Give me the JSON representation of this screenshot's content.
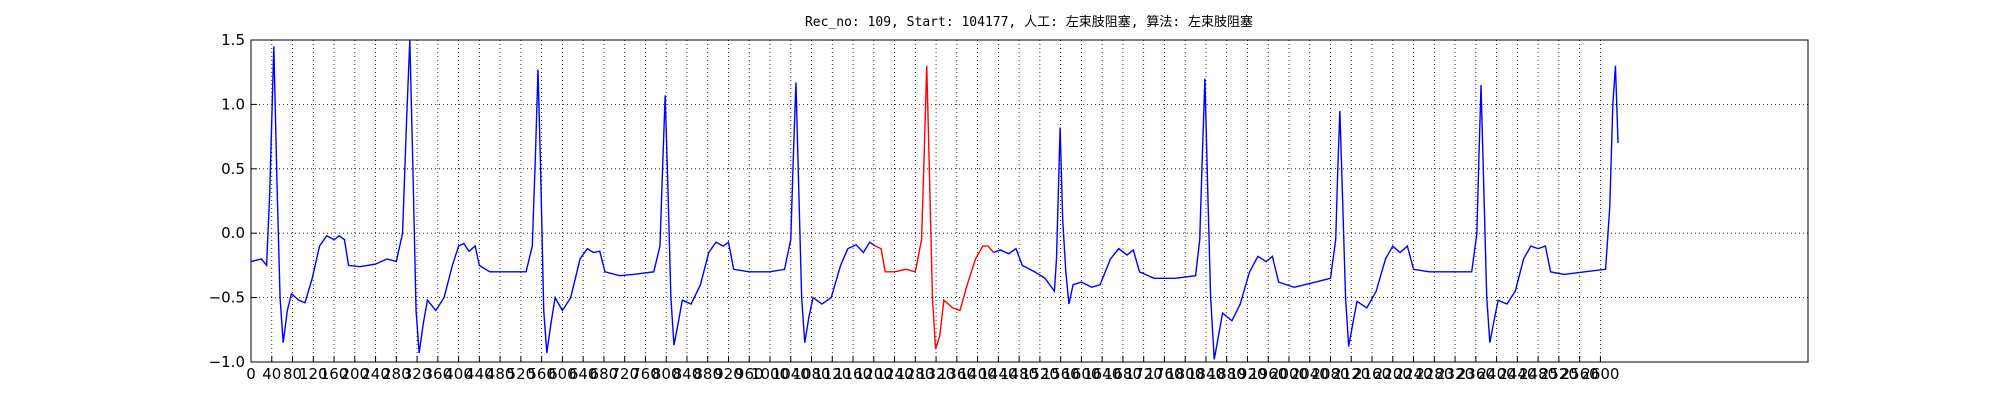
{
  "chart_data": {
    "type": "line",
    "title": "Rec_no: 109, Start: 104177, 人工: 左束肢阻塞, 算法: 左束肢阻塞",
    "xlim": [
      0,
      3000
    ],
    "ylim": [
      -1,
      1.5
    ],
    "xticks": [
      0,
      40,
      80,
      120,
      160,
      200,
      240,
      280,
      320,
      360,
      400,
      440,
      480,
      520,
      560,
      600,
      640,
      680,
      720,
      760,
      800,
      840,
      880,
      920,
      960,
      1000,
      1040,
      1080,
      1120,
      1160,
      1200,
      1240,
      1280,
      1320,
      1360,
      1400,
      1440,
      1480,
      1520,
      1560,
      1600,
      1640,
      1680,
      1720,
      1760,
      1800,
      1840,
      1880,
      1920,
      1960,
      2000,
      2040,
      2080,
      2120,
      2160,
      2200,
      2240,
      2280,
      2320,
      2360,
      2400,
      2440,
      2480,
      2520,
      2560,
      2600
    ],
    "yticks": [
      {
        "value": -1,
        "label": "−1.0"
      },
      {
        "value": -0.5,
        "label": "−0.5"
      },
      {
        "value": 0,
        "label": "0.0"
      },
      0.5,
      {
        "value": 1,
        "label": "1.0"
      },
      1.5
    ],
    "grid": true,
    "series": [
      {
        "color": "#0000ff",
        "x": [
          0,
          20,
          30,
          36,
          44,
          50,
          56,
          62,
          70,
          78,
          92,
          104,
          118,
          132,
          146,
          160,
          170,
          180,
          188,
          210,
          240,
          262,
          280,
          292,
          300,
          306,
          312,
          318,
          324,
          332,
          340,
          356,
          372,
          388,
          400,
          410,
          420,
          432,
          440,
          460,
          488,
          530,
          542,
          548,
          553,
          558,
          564,
          570,
          578,
          586,
          600,
          616,
          634,
          648,
          660,
          672,
          682,
          710,
          736,
          776,
          788,
          793,
          798,
          803,
          809,
          815,
          823,
          831,
          848,
          866,
          882,
          896,
          910,
          920,
          930,
          960,
          1000,
          1028,
          1040,
          1045,
          1050,
          1055,
          1061,
          1067,
          1075,
          1083,
          1100,
          1118,
          1136,
          1150,
          1166,
          1180,
          1192,
          1203
        ],
        "values": [
          -0.22,
          -0.2,
          -0.25,
          0.3,
          1.45,
          0.4,
          -0.5,
          -0.85,
          -0.6,
          -0.47,
          -0.52,
          -0.54,
          -0.35,
          -0.1,
          -0.02,
          -0.05,
          -0.02,
          -0.05,
          -0.25,
          -0.26,
          -0.24,
          -0.2,
          -0.22,
          0.0,
          0.9,
          1.5,
          0.5,
          -0.6,
          -0.93,
          -0.7,
          -0.52,
          -0.6,
          -0.5,
          -0.25,
          -0.1,
          -0.08,
          -0.14,
          -0.1,
          -0.25,
          -0.3,
          -0.3,
          -0.3,
          -0.1,
          0.6,
          1.27,
          0.5,
          -0.6,
          -0.93,
          -0.7,
          -0.5,
          -0.6,
          -0.5,
          -0.2,
          -0.12,
          -0.15,
          -0.14,
          -0.3,
          -0.33,
          -0.32,
          -0.3,
          -0.1,
          0.5,
          1.07,
          0.4,
          -0.5,
          -0.87,
          -0.7,
          -0.52,
          -0.55,
          -0.4,
          -0.15,
          -0.07,
          -0.1,
          -0.07,
          -0.28,
          -0.3,
          -0.3,
          -0.28,
          -0.05,
          0.6,
          1.17,
          0.4,
          -0.5,
          -0.85,
          -0.65,
          -0.5,
          -0.55,
          -0.5,
          -0.25,
          -0.12,
          -0.09,
          -0.15,
          -0.07,
          -0.1
        ]
      },
      {
        "color": "#ff0000",
        "x": [
          1203,
          1214,
          1222,
          1240,
          1262,
          1280,
          1292,
          1297,
          1302,
          1307,
          1313,
          1319,
          1327,
          1335,
          1352,
          1366,
          1380,
          1396,
          1410,
          1420,
          1431
        ],
        "values": [
          -0.1,
          -0.12,
          -0.3,
          -0.3,
          -0.28,
          -0.3,
          -0.05,
          0.6,
          1.3,
          0.5,
          -0.5,
          -0.9,
          -0.8,
          -0.52,
          -0.58,
          -0.6,
          -0.4,
          -0.2,
          -0.1,
          -0.1,
          -0.15
        ]
      },
      {
        "color": "#0000ff",
        "x": [
          1431,
          1444,
          1460,
          1474,
          1486,
          1510,
          1530,
          1548,
          1552,
          1559,
          1564,
          1570,
          1576,
          1584,
          1600,
          1620,
          1636,
          1656,
          1672,
          1688,
          1700,
          1712,
          1740,
          1780,
          1820,
          1828,
          1833,
          1838,
          1843,
          1849,
          1856,
          1864,
          1872,
          1890,
          1906,
          1924,
          1940,
          1956,
          1968,
          1980,
          2010,
          2050,
          2080,
          2090,
          2094,
          2098,
          2103,
          2109,
          2115,
          2123,
          2131,
          2150,
          2168,
          2186,
          2200,
          2214,
          2228,
          2240,
          2270,
          2310,
          2352,
          2362,
          2366,
          2370,
          2375,
          2381,
          2387,
          2395,
          2403,
          2420,
          2436,
          2452,
          2466,
          2480,
          2494,
          2504,
          2530,
          2570,
          2610,
          2618,
          2624,
          2629,
          2634
        ],
        "values": [
          -0.15,
          -0.13,
          -0.16,
          -0.12,
          -0.25,
          -0.3,
          -0.35,
          -0.45,
          -0.2,
          0.82,
          0.1,
          -0.3,
          -0.55,
          -0.4,
          -0.38,
          -0.42,
          -0.4,
          -0.2,
          -0.12,
          -0.17,
          -0.13,
          -0.3,
          -0.35,
          -0.35,
          -0.33,
          -0.05,
          0.6,
          1.2,
          0.4,
          -0.5,
          -0.98,
          -0.8,
          -0.62,
          -0.68,
          -0.55,
          -0.3,
          -0.18,
          -0.22,
          -0.18,
          -0.38,
          -0.42,
          -0.38,
          -0.35,
          -0.05,
          0.5,
          0.95,
          0.3,
          -0.5,
          -0.88,
          -0.7,
          -0.53,
          -0.58,
          -0.45,
          -0.2,
          -0.1,
          -0.15,
          -0.1,
          -0.28,
          -0.3,
          -0.3,
          -0.3,
          0.0,
          0.6,
          1.15,
          0.4,
          -0.5,
          -0.85,
          -0.68,
          -0.52,
          -0.55,
          -0.45,
          -0.2,
          -0.1,
          -0.12,
          -0.1,
          -0.3,
          -0.32,
          -0.3,
          -0.28,
          0.2,
          1.0,
          1.3,
          0.7
        ]
      }
    ]
  }
}
